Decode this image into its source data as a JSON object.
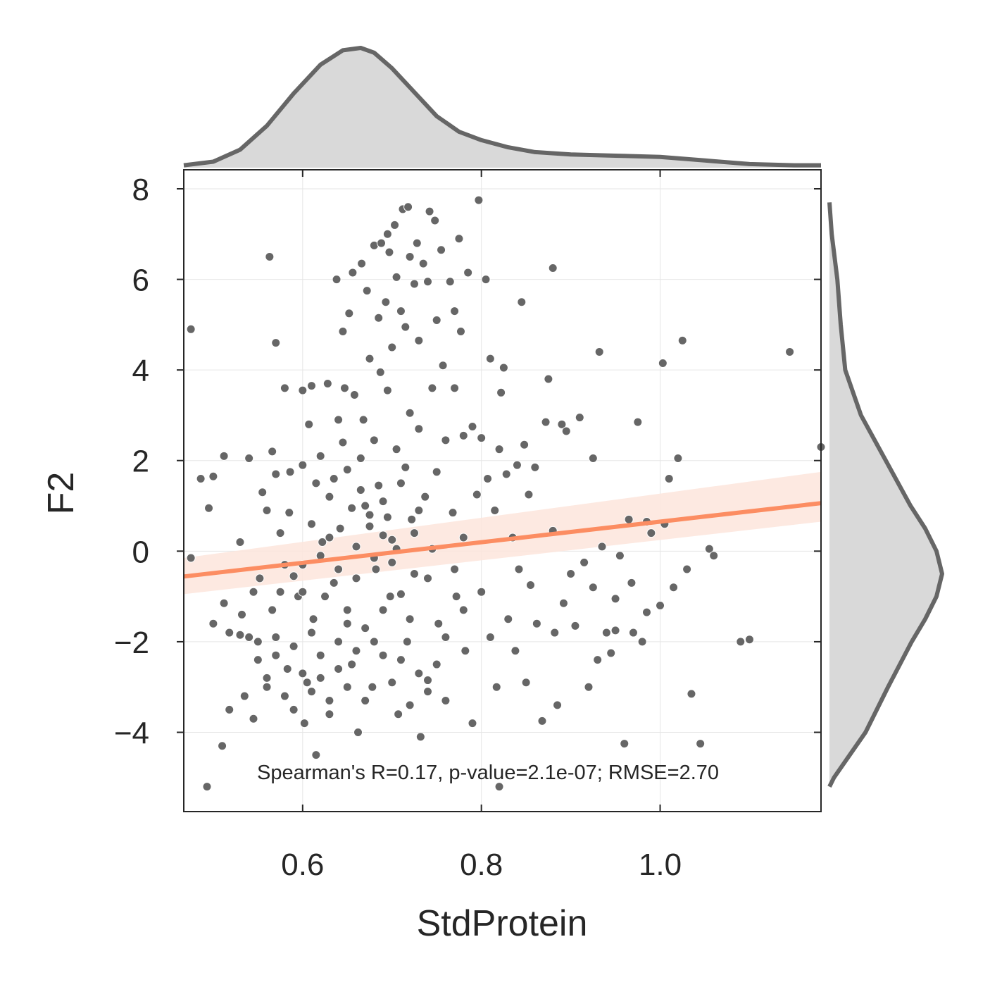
{
  "chart_data": {
    "type": "scatter",
    "xlabel": "StdProtein",
    "ylabel": "F2",
    "xlim": [
      0.467,
      1.18
    ],
    "ylim": [
      -5.75,
      8.42
    ],
    "xticks": [
      0.6,
      0.8,
      1.0
    ],
    "xtick_labels": [
      "0.6",
      "0.8",
      "1.0"
    ],
    "yticks": [
      -4,
      -2,
      0,
      2,
      4,
      6,
      8
    ],
    "ytick_labels": [
      "−4",
      "−2",
      "0",
      "2",
      "4",
      "6",
      "8"
    ],
    "grid": true,
    "annotation": "Spearman's R=0.17, p-value=2.1e-07; RMSE=2.70",
    "colors": {
      "points": "#666666",
      "regression": "#fc8d62",
      "band": "#fde5dc",
      "marginal_line": "#666666",
      "marginal_fill": "#d9d9d9"
    },
    "regression": {
      "x": [
        0.467,
        1.18
      ],
      "y": [
        -0.56,
        1.06
      ],
      "ci_low": [
        -0.95,
        0.65
      ],
      "ci_high": [
        -0.15,
        1.75
      ]
    },
    "points": [
      [
        0.475,
        4.9
      ],
      [
        0.475,
        -0.15
      ],
      [
        0.486,
        1.6
      ],
      [
        0.493,
        -5.2
      ],
      [
        0.495,
        0.95
      ],
      [
        0.5,
        -1.6
      ],
      [
        0.5,
        1.65
      ],
      [
        0.51,
        -4.3
      ],
      [
        0.512,
        2.1
      ],
      [
        0.512,
        -1.15
      ],
      [
        0.518,
        -3.5
      ],
      [
        0.518,
        -1.8
      ],
      [
        0.53,
        -1.85
      ],
      [
        0.53,
        0.2
      ],
      [
        0.532,
        -1.4
      ],
      [
        0.535,
        -3.2
      ],
      [
        0.54,
        2.05
      ],
      [
        0.54,
        -1.9
      ],
      [
        0.545,
        -3.7
      ],
      [
        0.55,
        -2.4
      ],
      [
        0.552,
        -0.6
      ],
      [
        0.555,
        1.3
      ],
      [
        0.56,
        -2.8
      ],
      [
        0.56,
        0.9
      ],
      [
        0.563,
        6.5
      ],
      [
        0.566,
        2.2
      ],
      [
        0.566,
        -1.3
      ],
      [
        0.57,
        1.7
      ],
      [
        0.57,
        -1.9
      ],
      [
        0.57,
        4.6
      ],
      [
        0.575,
        -0.9
      ],
      [
        0.575,
        0.4
      ],
      [
        0.58,
        -3.2
      ],
      [
        0.58,
        3.6
      ],
      [
        0.583,
        -2.6
      ],
      [
        0.585,
        0.85
      ],
      [
        0.586,
        1.75
      ],
      [
        0.59,
        -0.55
      ],
      [
        0.59,
        -2.1
      ],
      [
        0.595,
        -1.0
      ],
      [
        0.6,
        3.55
      ],
      [
        0.6,
        1.9
      ],
      [
        0.6,
        -0.3
      ],
      [
        0.602,
        -3.8
      ],
      [
        0.605,
        -2.9
      ],
      [
        0.607,
        2.8
      ],
      [
        0.61,
        3.65
      ],
      [
        0.61,
        0.6
      ],
      [
        0.612,
        -1.5
      ],
      [
        0.615,
        -4.5
      ],
      [
        0.615,
        1.5
      ],
      [
        0.62,
        2.1
      ],
      [
        0.62,
        -2.3
      ],
      [
        0.622,
        0.2
      ],
      [
        0.625,
        -1.0
      ],
      [
        0.628,
        3.7
      ],
      [
        0.63,
        -3.3
      ],
      [
        0.63,
        1.2
      ],
      [
        0.635,
        -0.7
      ],
      [
        0.638,
        6.0
      ],
      [
        0.64,
        2.9
      ],
      [
        0.64,
        -2.0
      ],
      [
        0.642,
        0.5
      ],
      [
        0.645,
        4.85
      ],
      [
        0.647,
        3.6
      ],
      [
        0.65,
        -1.3
      ],
      [
        0.65,
        1.8
      ],
      [
        0.652,
        5.25
      ],
      [
        0.655,
        -2.5
      ],
      [
        0.656,
        6.15
      ],
      [
        0.658,
        3.45
      ],
      [
        0.66,
        0.1
      ],
      [
        0.662,
        -4.0
      ],
      [
        0.665,
        1.35
      ],
      [
        0.666,
        6.35
      ],
      [
        0.668,
        2.9
      ],
      [
        0.67,
        -1.7
      ],
      [
        0.672,
        5.75
      ],
      [
        0.675,
        4.25
      ],
      [
        0.675,
        0.8
      ],
      [
        0.678,
        -3.0
      ],
      [
        0.68,
        6.75
      ],
      [
        0.68,
        2.45
      ],
      [
        0.682,
        -0.4
      ],
      [
        0.685,
        5.15
      ],
      [
        0.687,
        3.95
      ],
      [
        0.688,
        6.8
      ],
      [
        0.69,
        1.1
      ],
      [
        0.69,
        -2.3
      ],
      [
        0.693,
        5.5
      ],
      [
        0.695,
        7.0
      ],
      [
        0.695,
        3.55
      ],
      [
        0.697,
        6.6
      ],
      [
        0.698,
        -1.0
      ],
      [
        0.7,
        4.5
      ],
      [
        0.7,
        0.25
      ],
      [
        0.703,
        7.2
      ],
      [
        0.705,
        6.05
      ],
      [
        0.705,
        2.25
      ],
      [
        0.707,
        -3.6
      ],
      [
        0.71,
        5.3
      ],
      [
        0.71,
        1.5
      ],
      [
        0.712,
        7.55
      ],
      [
        0.715,
        4.95
      ],
      [
        0.717,
        -2.0
      ],
      [
        0.718,
        7.6
      ],
      [
        0.72,
        6.5
      ],
      [
        0.72,
        3.05
      ],
      [
        0.722,
        0.7
      ],
      [
        0.725,
        5.9
      ],
      [
        0.725,
        -0.5
      ],
      [
        0.728,
        6.8
      ],
      [
        0.73,
        4.65
      ],
      [
        0.73,
        2.7
      ],
      [
        0.732,
        -4.1
      ],
      [
        0.735,
        6.35
      ],
      [
        0.737,
        1.2
      ],
      [
        0.74,
        5.95
      ],
      [
        0.74,
        -2.85
      ],
      [
        0.742,
        7.5
      ],
      [
        0.745,
        3.6
      ],
      [
        0.745,
        0.05
      ],
      [
        0.748,
        7.3
      ],
      [
        0.75,
        5.1
      ],
      [
        0.75,
        1.75
      ],
      [
        0.752,
        -1.6
      ],
      [
        0.755,
        6.65
      ],
      [
        0.757,
        4.1
      ],
      [
        0.76,
        2.45
      ],
      [
        0.76,
        -3.3
      ],
      [
        0.765,
        5.95
      ],
      [
        0.768,
        0.85
      ],
      [
        0.77,
        5.3
      ],
      [
        0.77,
        3.6
      ],
      [
        0.772,
        -1.0
      ],
      [
        0.775,
        6.9
      ],
      [
        0.777,
        4.85
      ],
      [
        0.78,
        2.55
      ],
      [
        0.78,
        0.3
      ],
      [
        0.782,
        -2.2
      ],
      [
        0.785,
        6.15
      ],
      [
        0.79,
        2.75
      ],
      [
        0.79,
        -3.8
      ],
      [
        0.795,
        1.25
      ],
      [
        0.797,
        7.75
      ],
      [
        0.8,
        -0.9
      ],
      [
        0.8,
        2.5
      ],
      [
        0.805,
        6.0
      ],
      [
        0.807,
        1.6
      ],
      [
        0.81,
        4.25
      ],
      [
        0.81,
        -1.9
      ],
      [
        0.815,
        0.9
      ],
      [
        0.817,
        -3.0
      ],
      [
        0.82,
        2.25
      ],
      [
        0.82,
        -5.2
      ],
      [
        0.822,
        3.5
      ],
      [
        0.825,
        4.05
      ],
      [
        0.828,
        1.7
      ],
      [
        0.83,
        -1.5
      ],
      [
        0.835,
        0.3
      ],
      [
        0.838,
        -2.2
      ],
      [
        0.84,
        1.9
      ],
      [
        0.842,
        -0.4
      ],
      [
        0.845,
        5.5
      ],
      [
        0.848,
        2.35
      ],
      [
        0.85,
        -2.9
      ],
      [
        0.853,
        1.25
      ],
      [
        0.855,
        -0.75
      ],
      [
        0.86,
        1.85
      ],
      [
        0.862,
        -1.6
      ],
      [
        0.868,
        -3.75
      ],
      [
        0.872,
        2.85
      ],
      [
        0.875,
        3.8
      ],
      [
        0.88,
        0.45
      ],
      [
        0.88,
        6.25
      ],
      [
        0.882,
        -1.8
      ],
      [
        0.885,
        -3.4
      ],
      [
        0.89,
        2.8
      ],
      [
        0.892,
        -1.15
      ],
      [
        0.895,
        2.65
      ],
      [
        0.9,
        -0.5
      ],
      [
        0.905,
        -1.65
      ],
      [
        0.91,
        2.95
      ],
      [
        0.915,
        -0.25
      ],
      [
        0.92,
        -3.0
      ],
      [
        0.925,
        2.05
      ],
      [
        0.93,
        -2.4
      ],
      [
        0.932,
        4.4
      ],
      [
        0.935,
        0.1
      ],
      [
        0.94,
        -1.8
      ],
      [
        0.945,
        -2.25
      ],
      [
        0.95,
        -1.05
      ],
      [
        0.955,
        -0.1
      ],
      [
        0.96,
        -4.25
      ],
      [
        0.965,
        0.7
      ],
      [
        0.97,
        -1.8
      ],
      [
        0.975,
        2.85
      ],
      [
        0.98,
        -2.0
      ],
      [
        0.985,
        -1.35
      ],
      [
        0.99,
        0.4
      ],
      [
        1.0,
        -1.2
      ],
      [
        1.003,
        4.15
      ],
      [
        1.01,
        1.6
      ],
      [
        1.015,
        -0.8
      ],
      [
        1.02,
        2.05
      ],
      [
        1.025,
        4.65
      ],
      [
        1.03,
        -0.4
      ],
      [
        1.035,
        -3.15
      ],
      [
        1.045,
        -4.25
      ],
      [
        1.055,
        0.05
      ],
      [
        1.06,
        -0.1
      ],
      [
        1.09,
        -2.0
      ],
      [
        1.1,
        -1.95
      ],
      [
        1.145,
        4.4
      ],
      [
        1.18,
        2.3
      ],
      [
        1.005,
        0.6
      ],
      [
        0.985,
        0.65
      ],
      [
        0.968,
        -0.7
      ],
      [
        0.95,
        -1.75
      ],
      [
        0.925,
        -0.8
      ],
      [
        0.68,
        -0.15
      ],
      [
        0.66,
        -0.6
      ],
      [
        0.7,
        -0.25
      ],
      [
        0.69,
        0.35
      ],
      [
        0.67,
        1.0
      ],
      [
        0.65,
        -1.6
      ],
      [
        0.71,
        -0.95
      ],
      [
        0.63,
        0.3
      ],
      [
        0.64,
        -0.4
      ],
      [
        0.72,
        -1.5
      ],
      [
        0.6,
        -0.9
      ],
      [
        0.61,
        -1.8
      ],
      [
        0.62,
        -0.1
      ],
      [
        0.73,
        0.9
      ],
      [
        0.74,
        -0.6
      ],
      [
        0.58,
        -0.3
      ],
      [
        0.57,
        -2.3
      ],
      [
        0.59,
        -3.5
      ],
      [
        0.6,
        -2.7
      ],
      [
        0.61,
        -3.1
      ],
      [
        0.62,
        -2.8
      ],
      [
        0.63,
        -3.6
      ],
      [
        0.64,
        -2.6
      ],
      [
        0.65,
        -3.0
      ],
      [
        0.66,
        -2.2
      ],
      [
        0.67,
        -3.3
      ],
      [
        0.68,
        -2.0
      ],
      [
        0.69,
        -1.3
      ],
      [
        0.7,
        -2.9
      ],
      [
        0.71,
        -2.4
      ],
      [
        0.72,
        -3.4
      ],
      [
        0.73,
        -2.7
      ],
      [
        0.74,
        -3.1
      ],
      [
        0.75,
        -2.5
      ],
      [
        0.76,
        -1.9
      ],
      [
        0.77,
        -0.4
      ],
      [
        0.78,
        -1.3
      ],
      [
        0.56,
        -3.0
      ],
      [
        0.55,
        -2.0
      ],
      [
        0.545,
        -0.9
      ],
      [
        0.675,
        0.55
      ],
      [
        0.655,
        0.95
      ],
      [
        0.685,
        1.45
      ],
      [
        0.695,
        0.75
      ],
      [
        0.705,
        0.05
      ],
      [
        0.715,
        1.85
      ],
      [
        0.725,
        0.4
      ],
      [
        0.635,
        1.6
      ],
      [
        0.645,
        2.4
      ],
      [
        0.665,
        2.05
      ]
    ],
    "marginal_x_kde": {
      "x": [
        0.467,
        0.5,
        0.53,
        0.56,
        0.59,
        0.62,
        0.645,
        0.665,
        0.68,
        0.7,
        0.725,
        0.75,
        0.775,
        0.8,
        0.83,
        0.86,
        0.9,
        0.95,
        1.0,
        1.05,
        1.1,
        1.15,
        1.18
      ],
      "density": [
        0.02,
        0.05,
        0.15,
        0.35,
        0.62,
        0.86,
        0.98,
        1.0,
        0.96,
        0.83,
        0.63,
        0.43,
        0.3,
        0.23,
        0.17,
        0.13,
        0.11,
        0.1,
        0.09,
        0.06,
        0.03,
        0.02,
        0.02
      ]
    },
    "marginal_y_kde": {
      "y": [
        7.7,
        7.0,
        6.0,
        5.0,
        4.0,
        3.0,
        2.0,
        1.0,
        0.5,
        0.0,
        -0.5,
        -1.0,
        -1.5,
        -2.0,
        -3.0,
        -4.0,
        -4.5,
        -5.0,
        -5.2
      ],
      "density": [
        0.0,
        0.02,
        0.07,
        0.1,
        0.14,
        0.28,
        0.5,
        0.72,
        0.85,
        0.95,
        1.0,
        0.95,
        0.85,
        0.73,
        0.52,
        0.32,
        0.18,
        0.04,
        0.0
      ]
    }
  }
}
